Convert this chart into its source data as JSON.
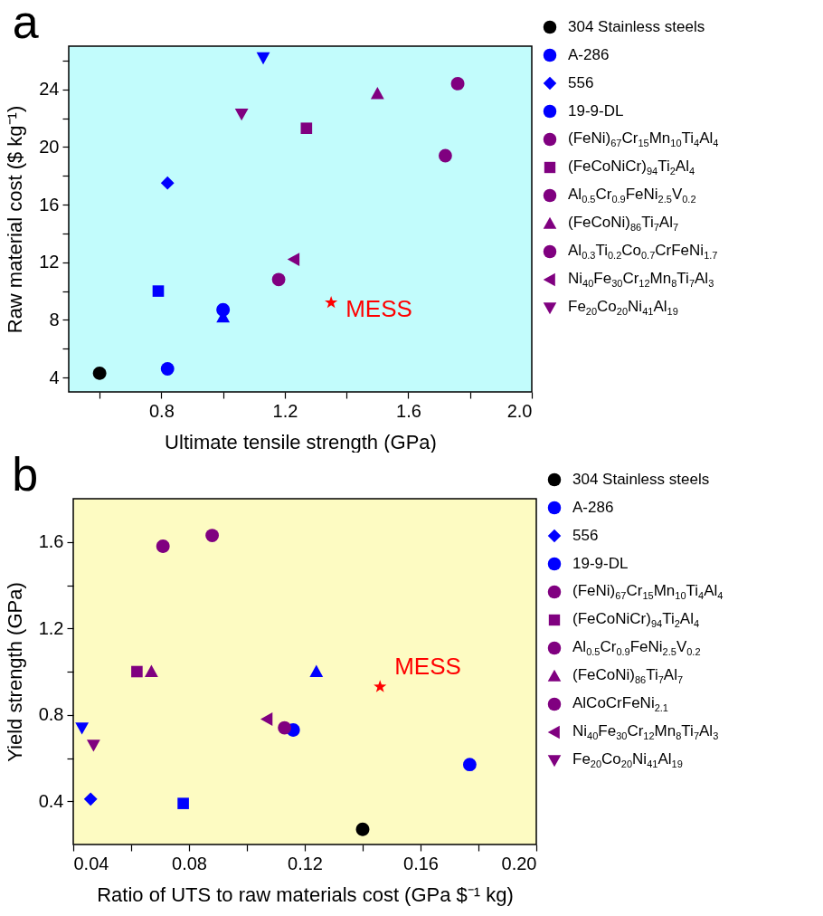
{
  "chart_data": [
    {
      "type": "scatter",
      "title": "a",
      "xlabel": "Ultimate tensile strength (GPa)",
      "ylabel": "Raw material cost ($ kg⁻¹)",
      "xlim": [
        0.5,
        2.0
      ],
      "ylim": [
        3,
        27
      ],
      "xticks": [
        {
          "value": 0.6,
          "label": null
        },
        0.8,
        {
          "value": 1.0,
          "label": null
        },
        1.2,
        {
          "value": 1.4,
          "label": null
        },
        1.6,
        {
          "value": 1.8,
          "label": null
        },
        {
          "value": 2.0,
          "label": "2.0"
        }
      ],
      "yticks": [
        4,
        {
          "value": 6,
          "label": null
        },
        8,
        {
          "value": 10,
          "label": null
        },
        12,
        {
          "value": 14,
          "label": null
        },
        16,
        {
          "value": 18,
          "label": null
        },
        20,
        {
          "value": 22,
          "label": null
        },
        24,
        {
          "value": 26,
          "label": null
        }
      ],
      "grid": false,
      "legend": "right",
      "annotations": [
        {
          "text": "MESS",
          "x": 1.35,
          "y": 9.2
        }
      ],
      "series": [
        {
          "name": "304 Stainless steels",
          "color": "#000000",
          "marker": "circle",
          "x": [
            0.6
          ],
          "values": [
            4.3
          ]
        },
        {
          "color": "#0000ff",
          "marker": "square",
          "x": [
            0.79
          ],
          "values": [
            10.0
          ]
        },
        {
          "name": "A-286",
          "color": "#0000ff",
          "marker": "circle",
          "x": [
            1.0
          ],
          "values": [
            8.7
          ]
        },
        {
          "color": "#0000ff",
          "marker": "triangle",
          "x": [
            1.0
          ],
          "values": [
            8.2
          ]
        },
        {
          "name": "556",
          "color": "#0000ff",
          "marker": "diamond",
          "x": [
            0.82
          ],
          "values": [
            17.5
          ]
        },
        {
          "name": "19-9-DL",
          "color": "#0000ff",
          "x": [
            0.82
          ],
          "values": [
            4.6
          ]
        },
        {
          "color": "#0000ff",
          "marker": "triangle-down",
          "x": [
            1.13
          ],
          "values": [
            26.2
          ]
        },
        {
          "name": "(FeNi)$_{67}$Cr$_{15}$Mn$_{10}$Ti$_{4}$Al$_{4}$",
          "color": "#800080",
          "x": [
            1.18
          ],
          "values": [
            10.8
          ]
        },
        {
          "name": "(FeCoNiCr)$_{94}$Ti$_{2}$Al$_{4}$",
          "color": "#800080",
          "marker": "square",
          "x": [
            1.27
          ],
          "values": [
            21.3
          ]
        },
        {
          "name": "Al$_{0.5}$Cr$_{0.9}$FeNi$_{2.5}$V$_{0.2}$",
          "color": "#800080",
          "marker": "circle",
          "x": [
            1.76
          ],
          "values": [
            24.4
          ]
        },
        {
          "name": "(FeCoNi)$_{86}$Ti$_{7}$Al$_{7}$",
          "color": "#800080",
          "marker": "triangle",
          "x": [
            1.5
          ],
          "values": [
            23.7
          ]
        },
        {
          "name": "Al$_{0.3}$Ti$_{0.2}$Co$_{0.7}$CrFeNi$_{1.7}$",
          "color": "#800080",
          "x": [
            1.72
          ],
          "values": [
            19.4
          ]
        },
        {
          "name": "Ni$_{40}$Fe$_{30}$Cr$_{12}$Mn$_{8}$Ti$_{7}$Al$_{3}$",
          "color": "#800080",
          "marker": "triangle-left",
          "x": [
            1.23
          ],
          "values": [
            12.2
          ]
        },
        {
          "name": "Fe$_{20}$Co$_{20}$Ni$_{41}$Al$_{19}$",
          "color": "#800080",
          "marker": "triangle-down",
          "x": [
            1.06
          ],
          "values": [
            22.3
          ]
        },
        {
          "color": "#ff0000",
          "marker": "star",
          "x": [
            1.35
          ],
          "values": [
            9.2
          ]
        }
      ]
    },
    {
      "type": "scatter",
      "title": "b",
      "xlabel": "Ratio of UTS to raw materials cost (GPa $⁻¹ kg)",
      "ylabel": "Yield strength (GPa)",
      "xlim": [
        0.04,
        0.2
      ],
      "ylim": [
        0.2,
        1.8
      ],
      "xticks": [
        0.04,
        {
          "value": 0.06,
          "label": null
        },
        0.08,
        {
          "value": 0.1,
          "label": null
        },
        0.12,
        {
          "value": 0.14,
          "label": null
        },
        0.16,
        {
          "value": 0.18,
          "label": null
        },
        {
          "value": 0.2,
          "label": "0.20"
        }
      ],
      "yticks": [
        0.4,
        {
          "value": 0.6,
          "label": null
        },
        0.8,
        {
          "value": 1.0,
          "label": null
        },
        1.2,
        {
          "value": 1.4,
          "label": null
        },
        1.6
      ],
      "grid": false,
      "legend": "right",
      "annotations": [
        {
          "text": "MESS",
          "x": 0.146,
          "y": 0.93
        }
      ],
      "series": [
        {
          "name": "304 Stainless steels",
          "color": "#000000",
          "marker": "circle",
          "x": [
            0.14
          ],
          "values": [
            0.27
          ]
        },
        {
          "color": "#0000ff",
          "marker": "square",
          "x": [
            0.078
          ],
          "values": [
            0.39
          ]
        },
        {
          "name": "A-286",
          "color": "#0000ff",
          "marker": "circle",
          "x": [
            0.116
          ],
          "values": [
            0.73
          ]
        },
        {
          "color": "#0000ff",
          "marker": "triangle",
          "x": [
            0.124
          ],
          "values": [
            1.0
          ]
        },
        {
          "name": "556",
          "color": "#0000ff",
          "marker": "diamond",
          "x": [
            0.046
          ],
          "values": [
            0.41
          ]
        },
        {
          "name": "19-9-DL",
          "color": "#0000ff",
          "x": [
            0.177
          ],
          "values": [
            0.57
          ]
        },
        {
          "color": "#0000ff",
          "marker": "triangle-down",
          "x": [
            0.043
          ],
          "values": [
            0.74
          ]
        },
        {
          "name": "(FeNi)$_{67}$Cr$_{15}$Mn$_{10}$Ti$_{4}$Al$_{4}$",
          "color": "#800080",
          "x": [
            0.113
          ],
          "values": [
            0.74
          ]
        },
        {
          "name": "(FeCoNiCr)$_{94}$Ti$_{2}$Al$_{4}$",
          "color": "#800080",
          "marker": "square",
          "x": [
            0.062
          ],
          "values": [
            1.0
          ]
        },
        {
          "name": "Al$_{0.5}$Cr$_{0.9}$FeNi$_{2.5}$V$_{0.2}$",
          "color": "#800080",
          "marker": "circle",
          "x": [
            0.071
          ],
          "values": [
            1.58
          ]
        },
        {
          "name": "(FeCoNi)$_{86}$Ti$_{7}$Al$_{7}$",
          "color": "#800080",
          "marker": "triangle",
          "x": [
            0.067
          ],
          "values": [
            1.0
          ]
        },
        {
          "name": "AlCoCrFeNi$_{2.1}$",
          "color": "#800080",
          "x": [
            0.088
          ],
          "values": [
            1.63
          ]
        },
        {
          "name": "Ni$_{40}$Fe$_{30}$Cr$_{12}$Mn$_{8}$Ti$_{7}$Al$_{3}$",
          "color": "#800080",
          "marker": "triangle-left",
          "x": [
            0.107
          ],
          "values": [
            0.78
          ]
        },
        {
          "name": "Fe$_{20}$Co$_{20}$Ni$_{41}$Al$_{19}$",
          "color": "#800080",
          "marker": "triangle-down",
          "x": [
            0.047
          ],
          "values": [
            0.66
          ]
        },
        {
          "color": "#ff0000",
          "marker": "star",
          "x": [
            0.146
          ],
          "values": [
            0.93
          ]
        }
      ]
    }
  ]
}
